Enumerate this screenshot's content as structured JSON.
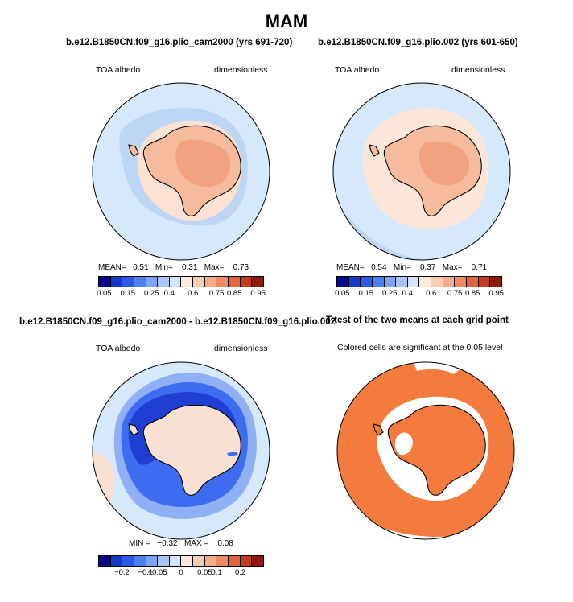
{
  "title": "MAM",
  "colors": {
    "ocean_light": "#d6e8fb",
    "sea_ice_blue": "#bcd6f4",
    "land_peach": "#f5bb9c",
    "land_dark": "#f2a27e",
    "diff_blue_dark": "#1f3fd4",
    "diff_blue_mid": "#3d6cf0",
    "diff_blue_light": "#8fb0f5",
    "diff_pale": "#f8e0d2",
    "sig_orange": "#f47a3e",
    "outline": "#000000"
  },
  "panels": [
    {
      "title": "b.e12.B1850CN.f09_g16.plio_cam2000 (yrs 691-720)",
      "var_label": "TOA albedo",
      "units_label": "dimensionless",
      "stats": {
        "mean_label": "MEAN=",
        "mean": "0.51",
        "min_label": "Min=",
        "min": "0.31",
        "max_label": "Max=",
        "max": "0.73"
      }
    },
    {
      "title": "b.e12.B1850CN.f09_g16.plio.002 (yrs 601-650)",
      "var_label": "TOA albedo",
      "units_label": "dimensionless",
      "stats": {
        "mean_label": "MEAN=",
        "mean": "0.54",
        "min_label": "Min=",
        "min": "0.37",
        "max_label": "Max=",
        "max": "0.71"
      }
    },
    {
      "title": "b.e12.B1850CN.f09_g16.plio_cam2000 - b.e12.B1850CN.f09_g16.plio.002",
      "var_label": "TOA albedo",
      "units_label": "dimensionless",
      "stats": {
        "min_label": "MIN =",
        "min": "−0.32",
        "max_label": "MAX =",
        "max": "0.08"
      }
    },
    {
      "title": "T-test of the two means at each grid point",
      "subtitle": "Colored cells are significant at the 0.05 level"
    }
  ],
  "abs_colorbar": {
    "colors": [
      "#08088a",
      "#1438c8",
      "#2a5ae6",
      "#4f80f2",
      "#7aa4f6",
      "#a8c6fa",
      "#d2e4fc",
      "#fce8dc",
      "#f8cdb4",
      "#f4ad8a",
      "#ee8a62",
      "#e2643f",
      "#c43c22",
      "#8e1a0c"
    ],
    "ticks": [
      "0.05",
      "0.15",
      "0.25",
      "0.4",
      "0.6",
      "0.75",
      "0.85",
      "0.95"
    ]
  },
  "diff_colorbar": {
    "colors": [
      "#08088a",
      "#1438c8",
      "#2a5ae6",
      "#4f80f2",
      "#7aa4f6",
      "#a8c6fa",
      "#d2e4fc",
      "#fce8dc",
      "#f8cdb4",
      "#f4ad8a",
      "#ee8a62",
      "#e2643f",
      "#c43c22",
      "#8e1a0c"
    ],
    "ticks": [
      "−0.2",
      "−0.1",
      "−0.05",
      "0",
      "0.05",
      "0.1",
      "0.2"
    ]
  }
}
